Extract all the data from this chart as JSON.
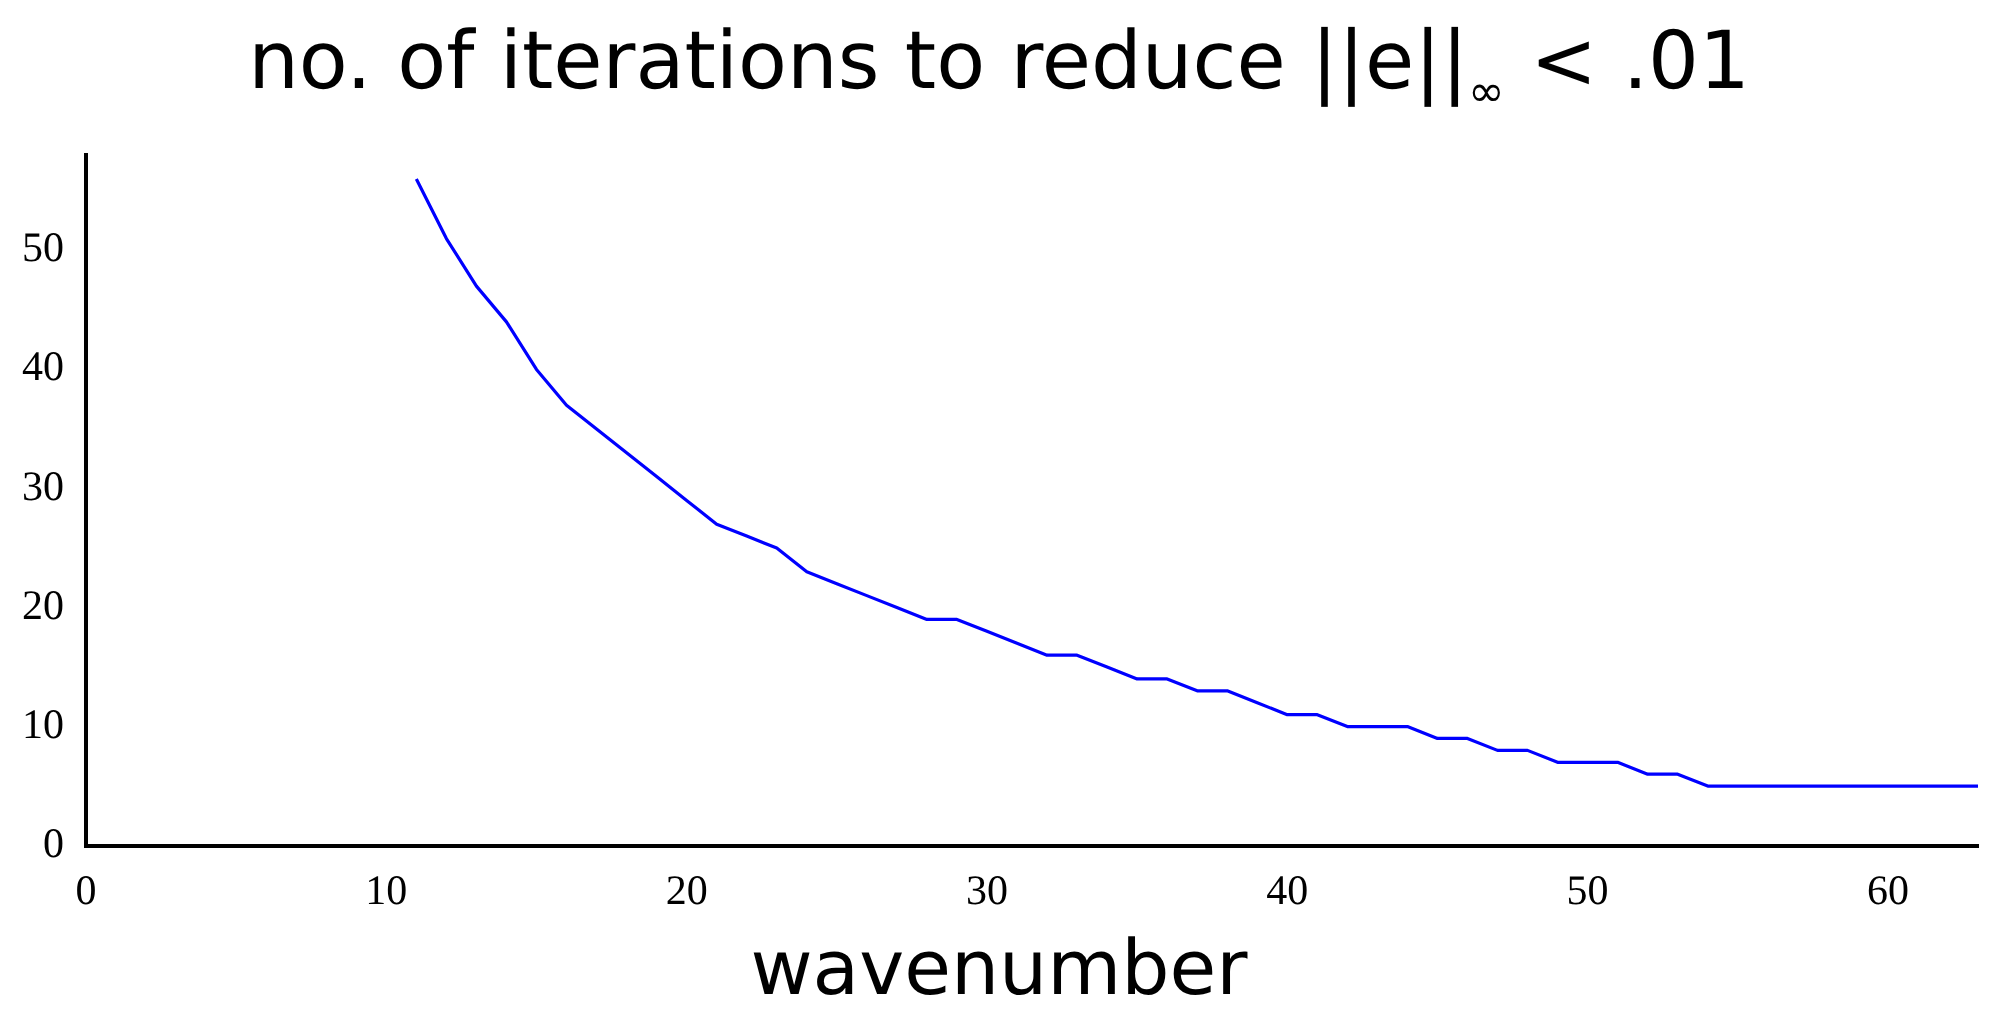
{
  "chart_data": {
    "type": "line",
    "title": "no. of iterations to reduce ||e||$_{∞}$ < .01",
    "xlabel": "wavenumber",
    "x": [
      11,
      12,
      13,
      14,
      15,
      16,
      17,
      18,
      19,
      20,
      21,
      22,
      23,
      24,
      25,
      26,
      27,
      28,
      29,
      30,
      31,
      32,
      33,
      34,
      35,
      36,
      37,
      38,
      39,
      40,
      41,
      42,
      43,
      44,
      45,
      46,
      47,
      48,
      49,
      50,
      51,
      52,
      53,
      54,
      55,
      56,
      57,
      58,
      59,
      60,
      61,
      62,
      63
    ],
    "series": [
      {
        "color": "#0000ff",
        "values": [
          56,
          51,
          47,
          44,
          40,
          37,
          35,
          33,
          31,
          29,
          27,
          26,
          25,
          23,
          22,
          21,
          20,
          19,
          19,
          18,
          17,
          16,
          16,
          15,
          14,
          14,
          13,
          13,
          12,
          11,
          11,
          10,
          10,
          10,
          9,
          9,
          8,
          8,
          7,
          7,
          7,
          6,
          6,
          5,
          5,
          5,
          5,
          5,
          5,
          5,
          5,
          5,
          5
        ]
      }
    ],
    "xlim": [
      0,
      63
    ],
    "xticks": [
      0,
      10,
      20,
      30,
      40,
      50,
      60
    ],
    "ylim": [
      0,
      58
    ],
    "yticks": [
      0,
      10,
      20,
      30,
      40,
      50
    ],
    "grid": false,
    "legend": false,
    "marker": "none",
    "line_style": "solid"
  }
}
